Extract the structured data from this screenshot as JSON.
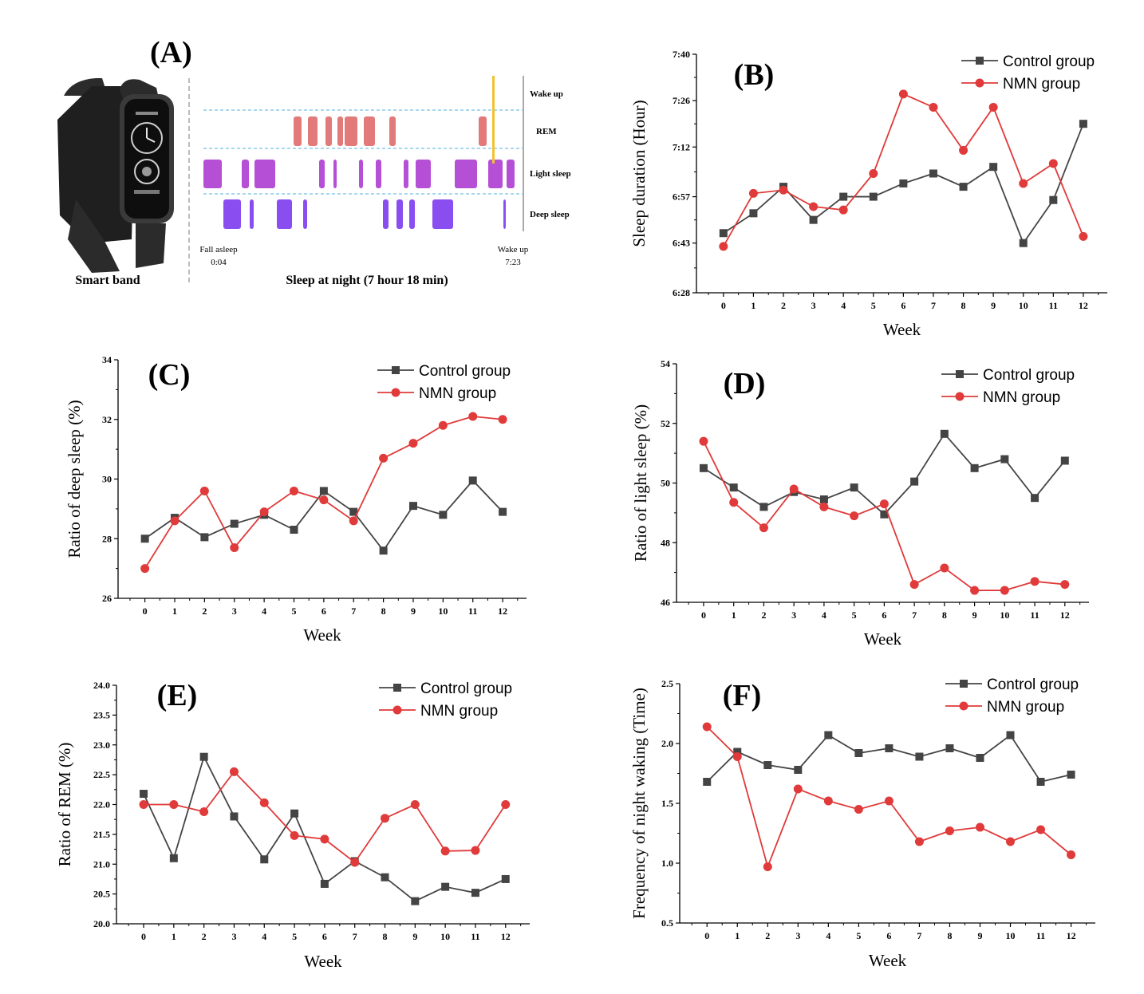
{
  "panel_a": {
    "label": "(A)",
    "device_caption": "Smart band",
    "sleep_caption": "Sleep at night (7 hour 18 min)",
    "stage_labels": [
      "Wake up",
      "REM",
      "Light sleep",
      "Deep sleep"
    ],
    "fall_asleep_label": "Fall asleep",
    "fall_asleep_time": "0:04",
    "wake_up_label": "Wake up",
    "wake_up_time": "7:23",
    "colors": {
      "rem": "#e27a7a",
      "light": "#b54fd6",
      "deep": "#8a4ef0",
      "wake": "#f2c230",
      "band": "#2b2b2b"
    }
  },
  "colors": {
    "control": "#444444",
    "nmn": "#e03a3a"
  },
  "chart_data": [
    {
      "id": "B",
      "label": "(B)",
      "type": "line",
      "x": [
        0,
        1,
        2,
        3,
        4,
        5,
        6,
        7,
        8,
        9,
        10,
        11,
        12
      ],
      "xlabel": "Week",
      "ylabel": "Sleep duration (Hour)",
      "ylim": [
        388,
        460
      ],
      "yticks": [
        388,
        403,
        417,
        432,
        446,
        460
      ],
      "ytick_labels": [
        "6:28",
        "6:43",
        "6:57",
        "7:12",
        "7:26",
        "7:40"
      ],
      "legend": "top-right",
      "series": [
        {
          "name": "Control group",
          "marker": "square",
          "values": [
            406,
            412,
            420,
            410,
            417,
            417,
            421,
            424,
            420,
            426,
            403,
            416,
            439
          ]
        },
        {
          "name": "NMN group",
          "marker": "circle",
          "values": [
            402,
            418,
            419,
            414,
            413,
            424,
            448,
            444,
            431,
            444,
            421,
            427,
            405
          ]
        }
      ]
    },
    {
      "id": "C",
      "label": "(C)",
      "type": "line",
      "x": [
        0,
        1,
        2,
        3,
        4,
        5,
        6,
        7,
        8,
        9,
        10,
        11,
        12
      ],
      "xlabel": "Week",
      "ylabel": "Ratio of deep sleep (%)",
      "ylim": [
        26,
        34
      ],
      "yticks": [
        26,
        28,
        30,
        32,
        34
      ],
      "ytick_labels": [
        "26",
        "28",
        "30",
        "32",
        "34"
      ],
      "legend": "top-right",
      "series": [
        {
          "name": "Control group",
          "marker": "square",
          "values": [
            28.0,
            28.7,
            28.05,
            28.5,
            28.8,
            28.3,
            29.6,
            28.9,
            27.6,
            29.1,
            28.8,
            29.95,
            28.9
          ]
        },
        {
          "name": "NMN group",
          "marker": "circle",
          "values": [
            27.0,
            28.6,
            29.6,
            27.7,
            28.9,
            29.6,
            29.3,
            28.6,
            30.7,
            31.2,
            31.8,
            32.1,
            32.0
          ]
        }
      ]
    },
    {
      "id": "D",
      "label": "(D)",
      "type": "line",
      "x": [
        0,
        1,
        2,
        3,
        4,
        5,
        6,
        7,
        8,
        9,
        10,
        11,
        12
      ],
      "xlabel": "Week",
      "ylabel": "Ratio of light sleep (%)",
      "ylim": [
        46,
        54
      ],
      "yticks": [
        46,
        48,
        50,
        52,
        54
      ],
      "ytick_labels": [
        "46",
        "48",
        "50",
        "52",
        "54"
      ],
      "legend": "top-right",
      "series": [
        {
          "name": "Control group",
          "marker": "square",
          "values": [
            50.5,
            49.85,
            49.2,
            49.7,
            49.45,
            49.85,
            48.95,
            50.05,
            51.65,
            50.5,
            50.8,
            49.5,
            50.75
          ]
        },
        {
          "name": "NMN group",
          "marker": "circle",
          "values": [
            51.4,
            49.35,
            48.5,
            49.8,
            49.2,
            48.9,
            49.3,
            46.6,
            47.15,
            46.4,
            46.4,
            46.7,
            46.6
          ]
        }
      ]
    },
    {
      "id": "E",
      "label": "(E)",
      "type": "line",
      "x": [
        0,
        1,
        2,
        3,
        4,
        5,
        6,
        7,
        8,
        9,
        10,
        11,
        12
      ],
      "xlabel": "Week",
      "ylabel": "Ratio of REM (%)",
      "ylim": [
        20.0,
        24.0
      ],
      "yticks": [
        20.0,
        20.5,
        21.0,
        21.5,
        22.0,
        22.5,
        23.0,
        23.5,
        24.0
      ],
      "ytick_labels": [
        "20.0",
        "20.5",
        "21.0",
        "21.5",
        "22.0",
        "22.5",
        "23.0",
        "23.5",
        "24.0"
      ],
      "legend": "top-right",
      "series": [
        {
          "name": "Control group",
          "marker": "square",
          "values": [
            22.18,
            21.1,
            22.8,
            21.8,
            21.08,
            21.85,
            20.67,
            21.05,
            20.78,
            20.38,
            20.62,
            20.52,
            20.75
          ]
        },
        {
          "name": "NMN group",
          "marker": "circle",
          "values": [
            22.0,
            22.0,
            21.88,
            22.55,
            22.03,
            21.48,
            21.42,
            21.03,
            21.77,
            22.0,
            21.22,
            21.23,
            22.0
          ]
        }
      ]
    },
    {
      "id": "F",
      "label": "(F)",
      "type": "line",
      "x": [
        0,
        1,
        2,
        3,
        4,
        5,
        6,
        7,
        8,
        9,
        10,
        11,
        12
      ],
      "xlabel": "Week",
      "ylabel": "Frequency  of night waking (Time)",
      "ylim": [
        0.5,
        2.5
      ],
      "yticks": [
        0.5,
        1.0,
        1.5,
        2.0,
        2.5
      ],
      "ytick_labels": [
        "0.5",
        "1.0",
        "1.5",
        "2.0",
        "2.5"
      ],
      "legend": "top-right",
      "series": [
        {
          "name": "Control group",
          "marker": "square",
          "values": [
            1.68,
            1.93,
            1.82,
            1.78,
            2.07,
            1.92,
            1.96,
            1.89,
            1.96,
            1.88,
            2.07,
            1.68,
            1.74
          ]
        },
        {
          "name": "NMN group",
          "marker": "circle",
          "values": [
            2.14,
            1.89,
            0.97,
            1.62,
            1.52,
            1.45,
            1.52,
            1.18,
            1.27,
            1.3,
            1.18,
            1.28,
            1.07
          ]
        }
      ]
    }
  ]
}
